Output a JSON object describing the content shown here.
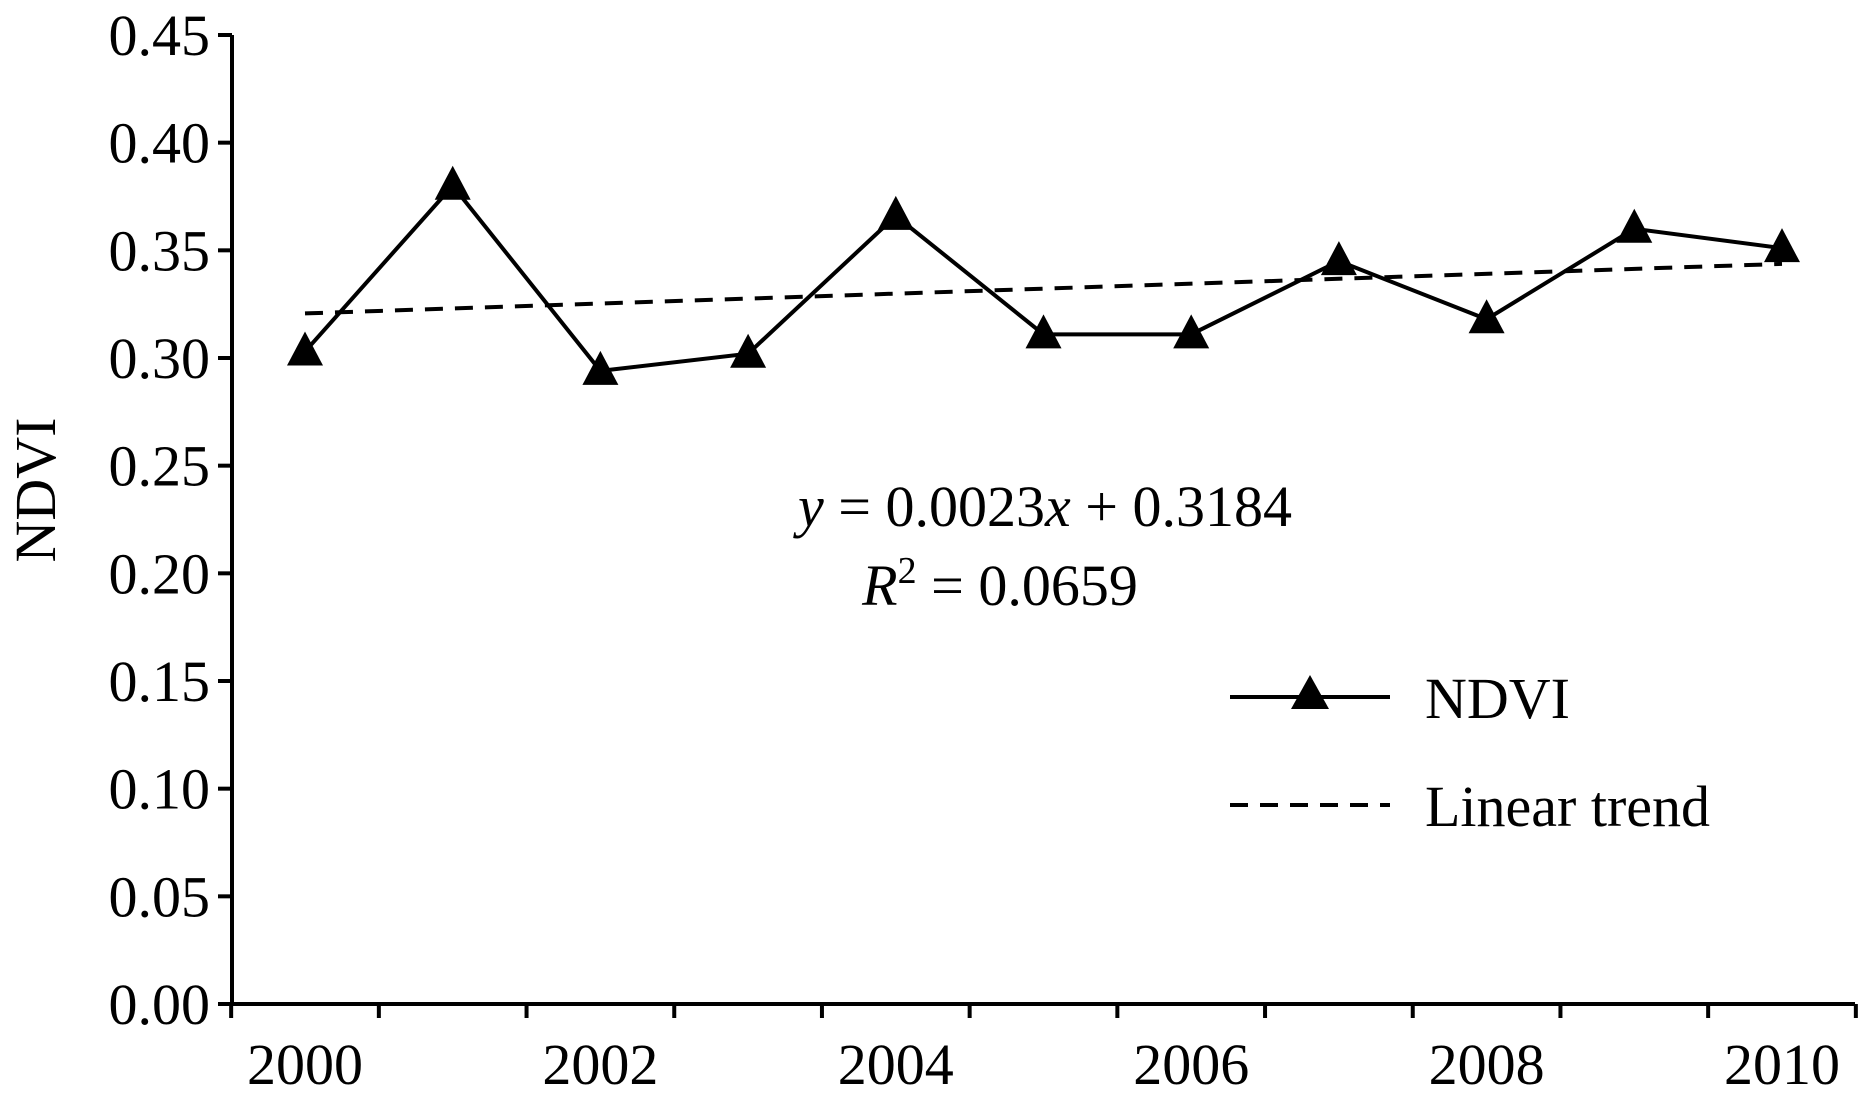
{
  "chart_data": {
    "type": "line",
    "title": "",
    "xlabel": "",
    "ylabel": "NDVI",
    "x": [
      2000,
      2001,
      2002,
      2003,
      2004,
      2005,
      2006,
      2007,
      2008,
      2009,
      2010
    ],
    "xlim": [
      2000,
      2010
    ],
    "x_ticks": [
      2000,
      2002,
      2004,
      2006,
      2008,
      2010
    ],
    "ylim": [
      0.0,
      0.45
    ],
    "y_ticks": [
      "0.00",
      "0.05",
      "0.10",
      "0.15",
      "0.20",
      "0.25",
      "0.30",
      "0.35",
      "0.40",
      "0.45"
    ],
    "series": [
      {
        "name": "NDVI",
        "style": "solid line with filled triangle markers",
        "color": "#000000",
        "values": [
          0.303,
          0.38,
          0.294,
          0.302,
          0.366,
          0.311,
          0.311,
          0.345,
          0.318,
          0.36,
          0.351
        ]
      },
      {
        "name": "Linear trend",
        "style": "dashed line",
        "color": "#000000",
        "slope": 0.0023,
        "intercept": 0.3184
      }
    ],
    "annotations": {
      "equation": {
        "y": "y",
        "eq_rest": " = 0.0023",
        "x": "x",
        "plus": " + 0.3184"
      },
      "r2": {
        "r": "R",
        "sup": "2",
        "rest": " = 0.0659"
      }
    },
    "legend_position": "right",
    "grid": false
  }
}
